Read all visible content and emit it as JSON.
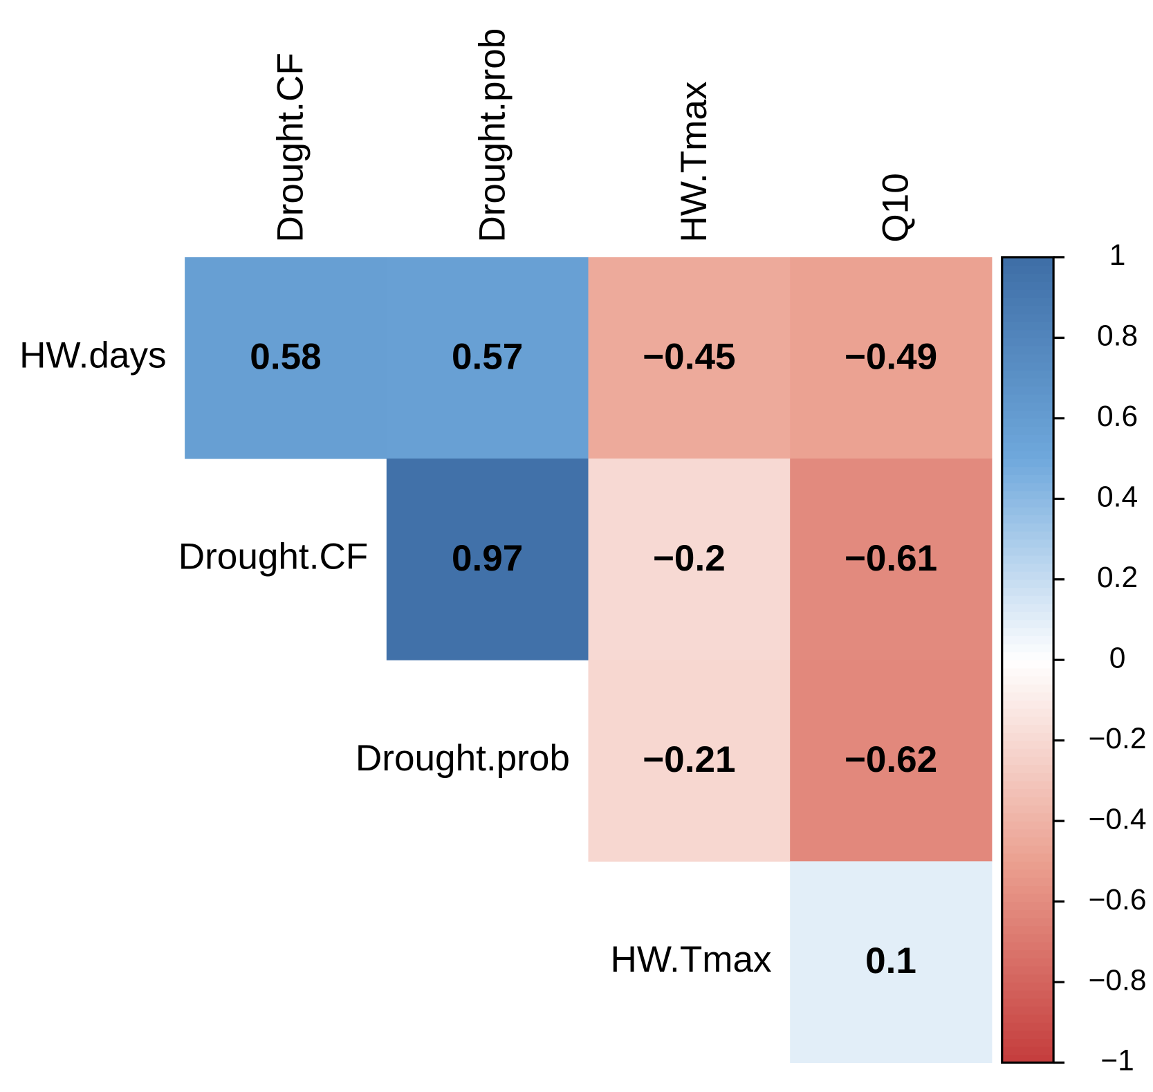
{
  "chart_data": {
    "type": "heatmap",
    "columns": [
      "Drought.CF",
      "Drought.prob",
      "HW.Tmax",
      "Q10"
    ],
    "rows": [
      "HW.days",
      "Drought.CF",
      "Drought.prob",
      "HW.Tmax"
    ],
    "values": [
      [
        0.58,
        0.57,
        -0.45,
        -0.49
      ],
      [
        null,
        0.97,
        -0.2,
        -0.61
      ],
      [
        null,
        null,
        -0.21,
        -0.62
      ],
      [
        null,
        null,
        null,
        0.1
      ]
    ],
    "value_labels": [
      [
        "0.58",
        "0.57",
        "−0.45",
        "−0.49"
      ],
      [
        null,
        "0.97",
        "−0.2",
        "−0.61"
      ],
      [
        null,
        null,
        "−0.21",
        "−0.62"
      ],
      [
        null,
        null,
        null,
        "0.1"
      ]
    ],
    "zlim": [
      -1,
      1
    ],
    "zticks": [
      {
        "value": -1,
        "label": "−1"
      },
      {
        "value": -0.8,
        "label": "−0.8"
      },
      {
        "value": -0.6,
        "label": "−0.6"
      },
      {
        "value": -0.4,
        "label": "−0.4"
      },
      {
        "value": -0.2,
        "label": "−0.2"
      },
      0,
      0.2,
      0.4,
      0.6,
      0.8,
      1
    ],
    "colors": [
      "#C43C3C",
      "#EBA090",
      "#FFFFFF",
      "#6FA8DC",
      "#3E6EA6"
    ]
  }
}
